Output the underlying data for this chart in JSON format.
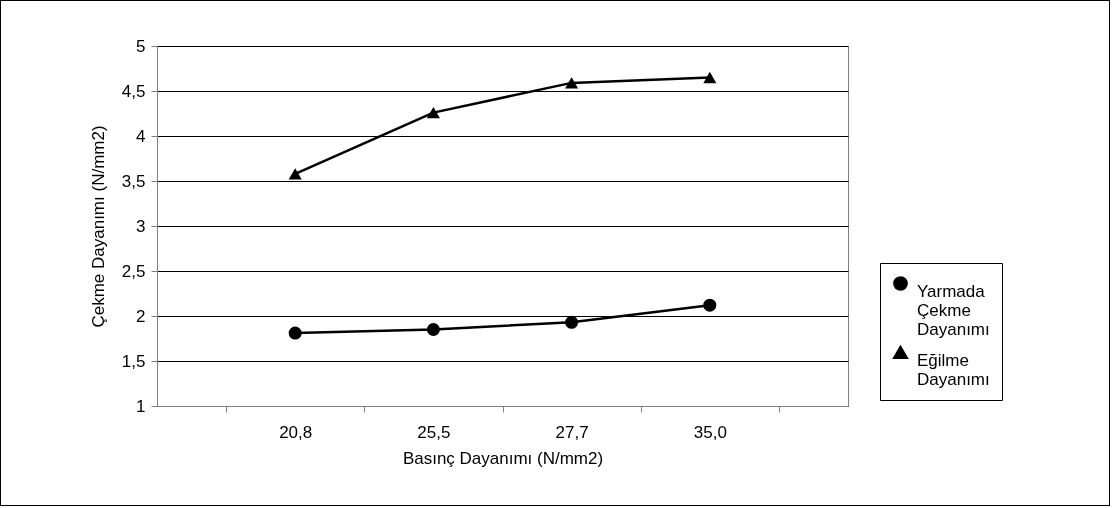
{
  "chart_data": {
    "type": "line",
    "xlabel": "Basınç Dayanımı (N/mm2)",
    "ylabel": "Çekme Dayanımı (N/mm2)",
    "categories": [
      "20,8",
      "25,5",
      "27,7",
      "35,0"
    ],
    "series": [
      {
        "name": "Yarmada Çekme Dayanımı",
        "color": "#000000",
        "marker": "circle",
        "values": [
          1.81,
          1.85,
          1.93,
          2.12
        ]
      },
      {
        "name": "Eğilme Dayanımı",
        "color": "#000000",
        "marker": "triangle",
        "values": [
          3.58,
          4.26,
          4.59,
          4.65
        ]
      }
    ],
    "ylim": [
      1,
      5
    ],
    "yticks": [
      1,
      {
        "value": 1.5,
        "label": "1,5"
      },
      2,
      {
        "value": 2.5,
        "label": "2,5"
      },
      3,
      {
        "value": 3.5,
        "label": "3,5"
      },
      4,
      {
        "value": 4.5,
        "label": "4,5"
      },
      5
    ],
    "grid": "y",
    "legend": "right",
    "line_style": "solid"
  }
}
